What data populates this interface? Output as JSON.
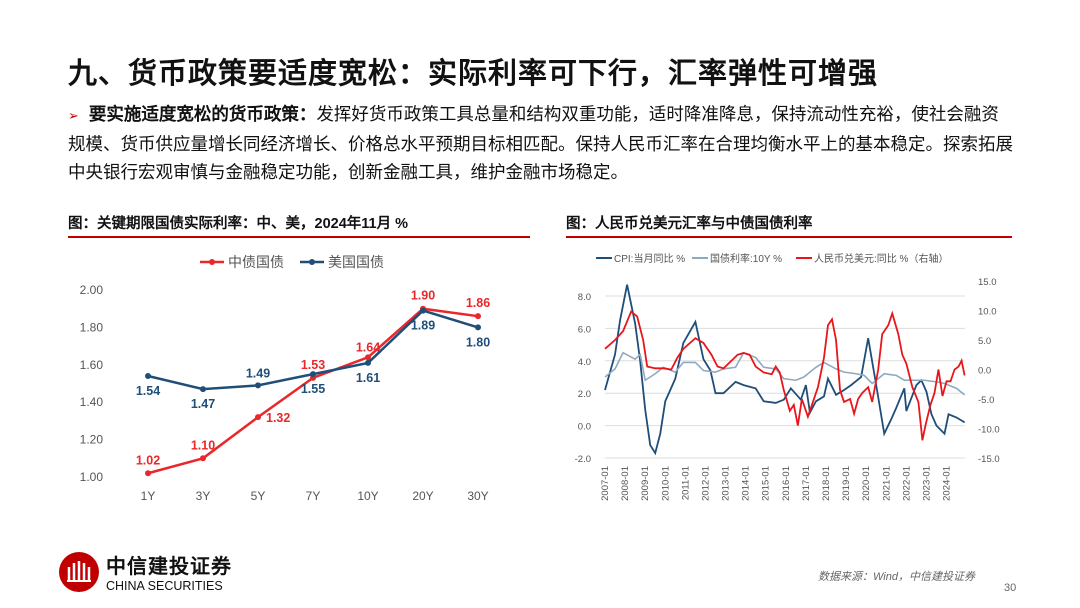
{
  "title": "九、货币政策要适度宽松：实际利率可下行，汇率弹性可增强",
  "bullet": {
    "lead": "要实施适度宽松的货币政策：",
    "text": "发挥好货币政策工具总量和结构双重功能，适时降准降息，保持流动性充裕，使社会融资规模、货币供应量增长同经济增长、价格总水平预期目标相匹配。保持人民币汇率在合理均衡水平上的基本稳定。探索拓展中央银行宏观审慎与金融稳定功能，创新金融工具，维护金融市场稳定。"
  },
  "figure1_title": "图：关键期限国债实际利率：中、美，2024年11月 %",
  "figure2_title": "图：人民币兑美元汇率与中债国债利率",
  "source": "数据来源：Wind，中信建投证券",
  "page_number": "30",
  "logo": {
    "cn": "中信建投证券",
    "en": "CHINA SECURITIES"
  },
  "colors": {
    "accent": "#c00000",
    "cn_line": "#e8282b",
    "us_line": "#1f4e79",
    "cpi": "#1f4e79",
    "bond": "#8eaabf",
    "rmb": "#e8161b"
  },
  "chart_data": [
    {
      "type": "line",
      "categories": [
        "1Y",
        "3Y",
        "5Y",
        "7Y",
        "10Y",
        "20Y",
        "30Y"
      ],
      "ylim": [
        1.0,
        2.0
      ],
      "yticks": [
        "1.00",
        "1.20",
        "1.40",
        "1.60",
        "1.80",
        "2.00"
      ],
      "legend": "top",
      "grid": false,
      "series": [
        {
          "name": "中债国债",
          "values": [
            1.02,
            1.1,
            1.32,
            1.53,
            1.64,
            1.9,
            1.86
          ]
        },
        {
          "name": "美国国债",
          "values": [
            1.54,
            1.47,
            1.49,
            1.55,
            1.61,
            1.89,
            1.8
          ]
        }
      ]
    },
    {
      "type": "line",
      "xlim": [
        2007.0,
        2024.92
      ],
      "xticks": [
        "2007-01",
        "2008-01",
        "2009-01",
        "2010-01",
        "2011-01",
        "2012-01",
        "2013-01",
        "2014-01",
        "2015-01",
        "2016-01",
        "2017-01",
        "2018-01",
        "2019-01",
        "2020-01",
        "2021-01",
        "2022-01",
        "2023-01",
        "2024-01"
      ],
      "ylim": [
        -2,
        8
      ],
      "yticks": [
        "-2.0",
        "0.0",
        "2.0",
        "4.0",
        "6.0",
        "8.0"
      ],
      "y2lim": [
        -15,
        15
      ],
      "y2ticks": [
        "-15.0",
        "-10.0",
        "-5.0",
        "0.0",
        "5.0",
        "10.0",
        "15.0"
      ],
      "legend": "top",
      "grid": true,
      "series": [
        {
          "name": "CPI:当月同比 %",
          "axis": "left",
          "x": [
            2007.0,
            2007.5,
            2007.75,
            2008.1,
            2008.5,
            2008.75,
            2009.0,
            2009.25,
            2009.5,
            2009.75,
            2010.0,
            2010.5,
            2010.9,
            2011.5,
            2011.9,
            2012.25,
            2012.5,
            2012.9,
            2013.5,
            2013.9,
            2014.5,
            2014.9,
            2015.5,
            2015.9,
            2016.25,
            2016.75,
            2017.0,
            2017.2,
            2017.5,
            2017.9,
            2018.1,
            2018.5,
            2018.9,
            2019.25,
            2019.75,
            2020.1,
            2020.5,
            2020.9,
            2021.25,
            2021.5,
            2021.9,
            2022.0,
            2022.5,
            2022.75,
            2023.0,
            2023.25,
            2023.5,
            2023.9,
            2024.1,
            2024.5,
            2024.9
          ],
          "values": [
            2.2,
            4.4,
            6.5,
            8.7,
            6.3,
            4.0,
            1.0,
            -1.2,
            -1.7,
            -0.5,
            1.5,
            2.9,
            5.1,
            6.4,
            4.1,
            3.4,
            2.0,
            2.0,
            2.7,
            2.5,
            2.3,
            1.5,
            1.4,
            1.6,
            2.3,
            1.6,
            2.5,
            0.8,
            1.5,
            1.8,
            2.9,
            1.9,
            2.2,
            2.5,
            3.0,
            5.4,
            2.5,
            -0.5,
            0.4,
            1.1,
            2.3,
            0.9,
            2.5,
            2.8,
            2.1,
            0.7,
            0.0,
            -0.5,
            0.7,
            0.5,
            0.2
          ]
        },
        {
          "name": "国债利率:10Y %",
          "axis": "left",
          "x": [
            2007.0,
            2007.5,
            2007.9,
            2008.5,
            2008.75,
            2009.0,
            2009.5,
            2009.9,
            2010.5,
            2010.9,
            2011.5,
            2011.9,
            2012.5,
            2012.9,
            2013.5,
            2013.9,
            2014.5,
            2014.9,
            2015.5,
            2015.9,
            2016.5,
            2016.9,
            2017.5,
            2017.9,
            2018.5,
            2018.9,
            2019.5,
            2019.9,
            2020.3,
            2020.9,
            2021.5,
            2021.9,
            2022.5,
            2022.9,
            2023.5,
            2023.9,
            2024.5,
            2024.9
          ],
          "values": [
            3.0,
            3.5,
            4.5,
            4.1,
            4.4,
            2.8,
            3.2,
            3.6,
            3.3,
            3.9,
            3.9,
            3.4,
            3.3,
            3.5,
            3.6,
            4.5,
            4.2,
            3.6,
            3.5,
            2.9,
            2.8,
            3.0,
            3.6,
            3.9,
            3.5,
            3.3,
            3.2,
            3.1,
            2.6,
            3.2,
            3.1,
            2.8,
            2.8,
            2.8,
            2.7,
            2.6,
            2.3,
            1.9
          ]
        },
        {
          "name": "人民币兑美元:同比  %（右轴）",
          "axis": "right",
          "x": [
            2007.0,
            2007.5,
            2007.9,
            2008.3,
            2008.6,
            2008.9,
            2009.1,
            2009.5,
            2009.9,
            2010.3,
            2010.6,
            2010.9,
            2011.5,
            2011.9,
            2012.3,
            2012.6,
            2012.9,
            2013.3,
            2013.6,
            2013.9,
            2014.2,
            2014.5,
            2014.9,
            2015.3,
            2015.5,
            2015.7,
            2015.9,
            2016.2,
            2016.4,
            2016.6,
            2016.8,
            2017.1,
            2017.3,
            2017.6,
            2017.9,
            2018.1,
            2018.3,
            2018.5,
            2018.7,
            2018.9,
            2019.2,
            2019.4,
            2019.6,
            2019.8,
            2020.1,
            2020.3,
            2020.6,
            2020.8,
            2021.1,
            2021.3,
            2021.6,
            2021.8,
            2022.0,
            2022.3,
            2022.6,
            2022.8,
            2022.95,
            2023.2,
            2023.4,
            2023.6,
            2023.8,
            2024.0,
            2024.2,
            2024.4,
            2024.6,
            2024.75,
            2024.9
          ],
          "values": [
            3.5,
            5.0,
            6.5,
            9.8,
            9.0,
            5.0,
            0.5,
            0.2,
            0.2,
            0.0,
            2.0,
            3.5,
            5.3,
            4.5,
            2.5,
            0.5,
            0.2,
            1.5,
            2.5,
            2.8,
            2.5,
            0.5,
            -0.5,
            -0.8,
            0.5,
            -0.5,
            -3.5,
            -7.0,
            -6.0,
            -9.5,
            -5.0,
            -8.0,
            -6.0,
            -3.0,
            2.0,
            7.5,
            8.5,
            5.0,
            -3.5,
            -5.5,
            -5.0,
            -7.5,
            -5.0,
            -4.0,
            -3.0,
            -5.5,
            0.0,
            6.0,
            7.5,
            9.5,
            6.0,
            2.5,
            1.0,
            -3.0,
            -5.5,
            -12.0,
            -9.5,
            -6.0,
            -4.0,
            0.0,
            -4.5,
            -2.0,
            -2.0,
            0.0,
            0.5,
            1.5,
            -1.0
          ]
        }
      ]
    }
  ]
}
